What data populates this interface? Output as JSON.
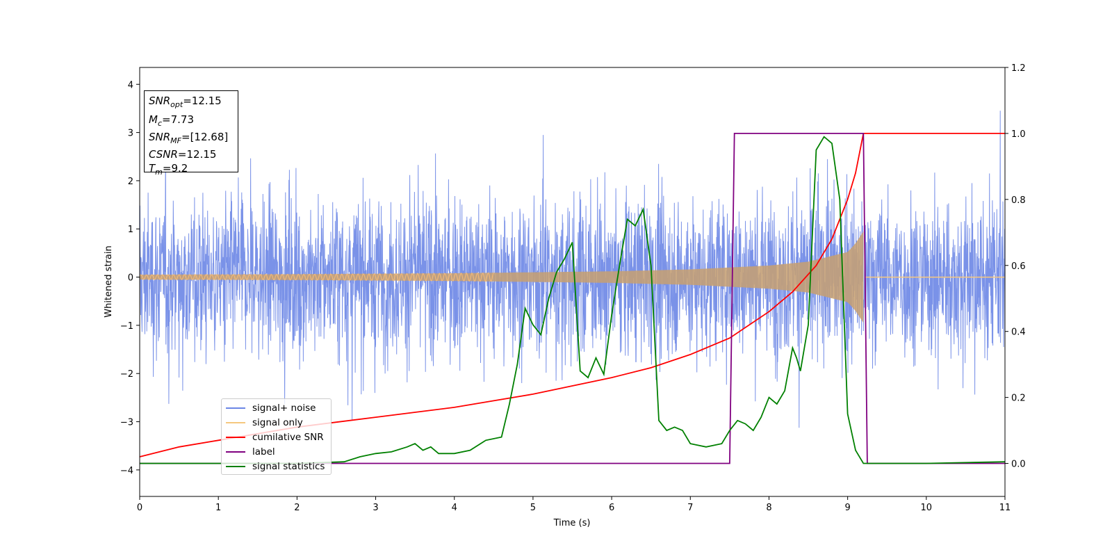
{
  "chart_data": {
    "type": "line",
    "xlabel": "Time (s)",
    "ylabel": "Whitened strain",
    "xlim": [
      0,
      11
    ],
    "ylim_left": [
      -4.55,
      4.35
    ],
    "ylim_right": [
      -0.1,
      1.2
    ],
    "x_ticks": [
      "0",
      "1",
      "2",
      "3",
      "4",
      "5",
      "6",
      "7",
      "8",
      "9",
      "10",
      "11"
    ],
    "y_ticks_left": [
      "4",
      "3",
      "2",
      "1",
      "0",
      "−1",
      "−2",
      "−3",
      "−4"
    ],
    "y_ticks_right": [
      "1.2",
      "1.0",
      "0.8",
      "0.6",
      "0.4",
      "0.2",
      "0.0"
    ],
    "info": {
      "snr_opt": "12.15",
      "mc": "7.73",
      "snr_mf": "[12.68]",
      "csnr": "12.15",
      "tm": "9.2"
    },
    "legend": [
      {
        "label": "signal+ noise",
        "color": "#6b86e6"
      },
      {
        "label": "signal only",
        "color": "#f5c77e"
      },
      {
        "label": "cumilative SNR",
        "color": "#ff0000"
      },
      {
        "label": "label",
        "color": "#800080"
      },
      {
        "label": "signal statistics",
        "color": "#008000"
      }
    ],
    "series": [
      {
        "name": "signal+ noise",
        "axis": "left",
        "color": "#6b86e6",
        "description_values": {
          "baseline": 0,
          "typical_amplitude": 2.0,
          "peak_max": 3.93,
          "peak_min": -4.15
        }
      },
      {
        "name": "signal only",
        "axis": "left",
        "color": "#c8a070",
        "envelope": {
          "x": [
            0,
            2,
            4,
            6,
            7,
            8,
            8.5,
            9,
            9.1,
            9.2,
            9.21,
            11
          ],
          "amp": [
            0.05,
            0.06,
            0.08,
            0.12,
            0.16,
            0.24,
            0.32,
            0.52,
            0.7,
            0.95,
            0,
            0
          ]
        }
      },
      {
        "name": "cumilative SNR",
        "axis": "right",
        "x": [
          0,
          0.5,
          1,
          1.5,
          2,
          2.5,
          3,
          3.5,
          4,
          4.5,
          5,
          5.5,
          6,
          6.5,
          7,
          7.5,
          8,
          8.3,
          8.6,
          8.8,
          9,
          9.1,
          9.2,
          11
        ],
        "y": [
          0.02,
          0.05,
          0.07,
          0.09,
          0.11,
          0.125,
          0.14,
          0.155,
          0.17,
          0.19,
          0.21,
          0.235,
          0.26,
          0.29,
          0.33,
          0.38,
          0.46,
          0.52,
          0.6,
          0.68,
          0.8,
          0.88,
          1.0,
          1.0
        ]
      },
      {
        "name": "label",
        "axis": "right",
        "x": [
          0,
          7.5,
          7.56,
          9.2,
          9.25,
          11
        ],
        "y": [
          0,
          0,
          1,
          1,
          0,
          0
        ]
      },
      {
        "name": "signal statistics",
        "axis": "right",
        "x": [
          0,
          1,
          2,
          2.6,
          2.8,
          3.0,
          3.2,
          3.4,
          3.5,
          3.6,
          3.7,
          3.8,
          4.0,
          4.2,
          4.4,
          4.6,
          4.7,
          4.8,
          4.9,
          5.0,
          5.1,
          5.2,
          5.3,
          5.4,
          5.5,
          5.6,
          5.7,
          5.8,
          5.9,
          6.0,
          6.1,
          6.2,
          6.3,
          6.4,
          6.5,
          6.6,
          6.7,
          6.8,
          6.9,
          7.0,
          7.2,
          7.4,
          7.5,
          7.6,
          7.7,
          7.8,
          7.9,
          8.0,
          8.1,
          8.2,
          8.3,
          8.35,
          8.4,
          8.5,
          8.6,
          8.7,
          8.8,
          8.9,
          9.0,
          9.1,
          9.2,
          9.3,
          10,
          11
        ],
        "y": [
          0.0,
          0.0,
          0.0,
          0.005,
          0.02,
          0.03,
          0.035,
          0.05,
          0.06,
          0.04,
          0.05,
          0.03,
          0.03,
          0.04,
          0.07,
          0.08,
          0.18,
          0.3,
          0.47,
          0.42,
          0.39,
          0.5,
          0.58,
          0.62,
          0.67,
          0.28,
          0.26,
          0.32,
          0.27,
          0.45,
          0.6,
          0.74,
          0.72,
          0.77,
          0.6,
          0.13,
          0.1,
          0.11,
          0.1,
          0.06,
          0.05,
          0.06,
          0.1,
          0.13,
          0.12,
          0.1,
          0.14,
          0.2,
          0.18,
          0.22,
          0.35,
          0.32,
          0.28,
          0.42,
          0.95,
          0.99,
          0.97,
          0.8,
          0.15,
          0.04,
          0.0,
          0.0,
          0.0,
          0.005
        ]
      }
    ],
    "grid": false
  }
}
